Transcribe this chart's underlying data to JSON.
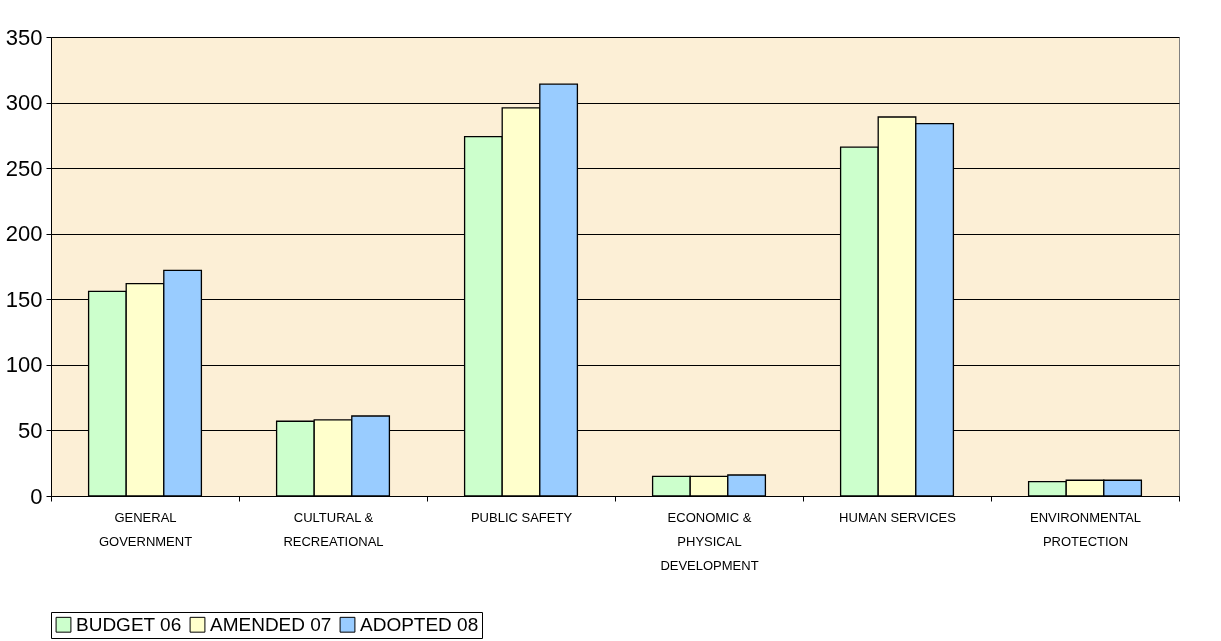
{
  "chart_data": {
    "type": "bar",
    "categories": [
      "GENERAL GOVERNMENT",
      "CULTURAL & RECREATIONAL",
      "PUBLIC SAFETY",
      "ECONOMIC & PHYSICAL DEVELOPMENT",
      "HUMAN SERVICES",
      "ENVIRONMENTAL PROTECTION"
    ],
    "series": [
      {
        "name": "BUDGET 06",
        "color": "#ccffcc",
        "values": [
          156,
          57,
          274,
          15,
          266,
          11
        ]
      },
      {
        "name": "AMENDED 07",
        "color": "#ffffcc",
        "values": [
          162,
          58,
          296,
          15,
          289,
          12
        ]
      },
      {
        "name": "ADOPTED 08",
        "color": "#99ccff",
        "values": [
          172,
          61,
          314,
          16,
          284,
          12
        ]
      }
    ],
    "ylim": [
      0,
      350
    ],
    "yticks": [
      0,
      50,
      100,
      150,
      200,
      250,
      300,
      350
    ],
    "grid": "y",
    "legend": "bottom"
  }
}
